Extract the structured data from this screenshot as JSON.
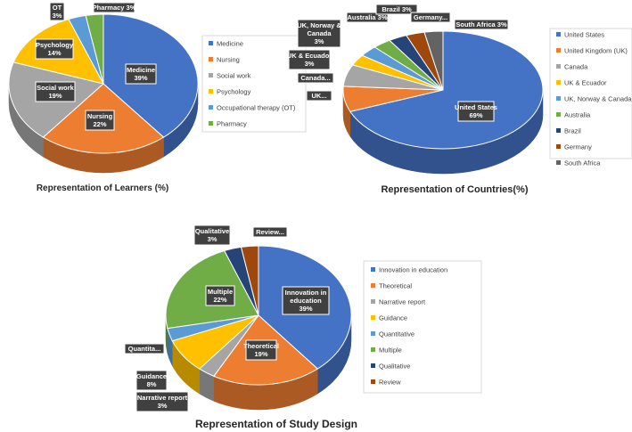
{
  "chart_data": [
    {
      "type": "pie",
      "title": "Representation of Learners (%)",
      "categories": [
        "Medicine",
        "Nursing",
        "Social work",
        "Psychology",
        "Occupational therapy (OT)",
        "Pharmacy"
      ],
      "values": [
        39,
        22,
        19,
        14,
        3,
        3
      ],
      "colors": [
        "#4472C4",
        "#ED7D31",
        "#A5A5A5",
        "#FFC000",
        "#5B9BD5",
        "#70AD47"
      ],
      "slice_labels": [
        {
          "name": "Medicine",
          "value": "39%"
        },
        {
          "name": "Nursing",
          "value": "22%"
        },
        {
          "name": "Social work",
          "value": "19%"
        },
        {
          "name": "Psychology",
          "value": "14%"
        },
        {
          "name": "OT",
          "value": "3%"
        },
        {
          "name": "Pharmacy 3%",
          "value": ""
        }
      ],
      "legend": [
        "Medicine",
        "Nursing",
        "Social work",
        "Psychology",
        "Occupational therapy (OT)",
        "Pharmacy"
      ],
      "legend_position": "right"
    },
    {
      "type": "pie",
      "title": "Representation of Countries(%)",
      "categories": [
        "United States",
        "United Kingdom (UK)",
        "Canada",
        "UK & Ecuador",
        "UK, Norway & Canada",
        "Australia",
        "Brazil",
        "Germany",
        "South Africa"
      ],
      "values": [
        69,
        7,
        6,
        3,
        3,
        3,
        3,
        3,
        3
      ],
      "colors": [
        "#4472C4",
        "#ED7D31",
        "#A5A5A5",
        "#FFC000",
        "#5B9BD5",
        "#70AD47",
        "#264478",
        "#9E480E",
        "#636363"
      ],
      "slice_labels": [
        {
          "name": "United States",
          "value": "69%"
        },
        {
          "name": "UK...",
          "value": ""
        },
        {
          "name": "Canada...",
          "value": ""
        },
        {
          "name": "UK & Ecuador",
          "value": "3%"
        },
        {
          "name": "UK, Norway &",
          "name2": "Canada",
          "value": "3%"
        },
        {
          "name": "Australia 3%",
          "value": ""
        },
        {
          "name": "Brazil 3%",
          "value": ""
        },
        {
          "name": "Germany...",
          "value": ""
        },
        {
          "name": "South Africa 3%",
          "value": ""
        }
      ],
      "legend": [
        "United States",
        "United Kingdom (UK)",
        "Canada",
        "UK & Ecuador",
        "UK, Norway & Canada",
        "Australia",
        "Brazil",
        "Germany",
        "South Africa"
      ],
      "legend_position": "right"
    },
    {
      "type": "pie",
      "title": "Representation of Study Design",
      "categories": [
        "Innovation in education",
        "Theoretical",
        "Narrative report",
        "Guidance",
        "Quantitative",
        "Multiple",
        "Qualitative",
        "Review"
      ],
      "values": [
        39,
        19,
        3,
        8,
        3,
        22,
        3,
        3
      ],
      "colors": [
        "#4472C4",
        "#ED7D31",
        "#A5A5A5",
        "#FFC000",
        "#5B9BD5",
        "#70AD47",
        "#264478",
        "#9E480E"
      ],
      "slice_labels": [
        {
          "name": "Innovation in",
          "name2": "education",
          "value": "39%"
        },
        {
          "name": "Theoretical",
          "value": "19%"
        },
        {
          "name": "Narrative report",
          "value": "3%"
        },
        {
          "name": "Guidance",
          "value": "8%"
        },
        {
          "name": "Quantita...",
          "value": ""
        },
        {
          "name": "Multiple",
          "value": "22%"
        },
        {
          "name": "Qualitative",
          "value": "3%"
        },
        {
          "name": "Review...",
          "value": ""
        }
      ],
      "legend": [
        "Innovation in education",
        "Theoretical",
        "Narrative report",
        "Guidance",
        "Quantitative",
        "Multiple",
        "Qualitative",
        "Review"
      ],
      "legend_position": "right"
    }
  ]
}
